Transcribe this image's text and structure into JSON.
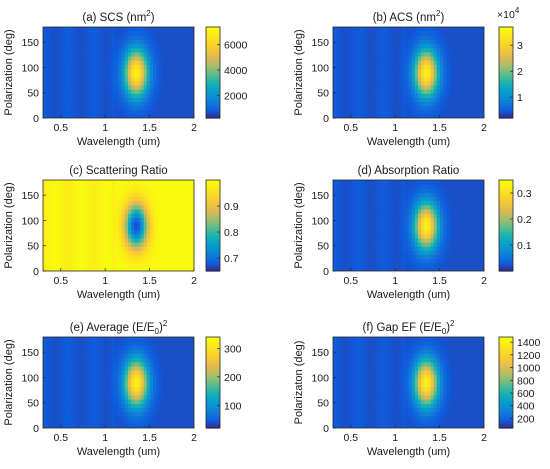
{
  "chart_data": [
    {
      "type": "heatmap",
      "title": "(a) SCS (nm",
      "title_sup": "2",
      "title_end": ")",
      "xlabel": "Wavelength (um)",
      "ylabel": "Polarization (deg)",
      "xlim": [
        0.3,
        2.0
      ],
      "ylim": [
        0,
        180
      ],
      "xticks": [
        "0.5",
        "1",
        "1.5",
        "2"
      ],
      "xtick_values": [
        0.5,
        1,
        1.5,
        2
      ],
      "yticks": [
        "0",
        "50",
        "100",
        "150"
      ],
      "ytick_values": [
        0,
        50,
        100,
        150
      ],
      "clim": [
        200,
        7400
      ],
      "colorbar_ticks": [
        "2000",
        "4000",
        "6000"
      ],
      "colorbar_values": [
        2000,
        4000,
        6000
      ],
      "colorbar_multiplier": "",
      "colormap": "parula",
      "peak": {
        "wavelength": 1.35,
        "polarization": 90
      },
      "inverted": false
    },
    {
      "type": "heatmap",
      "title": "(b) ACS (nm",
      "title_sup": "2",
      "title_end": ")",
      "xlabel": "Wavelength (um)",
      "ylabel": "Polarization (deg)",
      "xlim": [
        0.3,
        2.0
      ],
      "ylim": [
        0,
        180
      ],
      "xticks": [
        "0.5",
        "1",
        "1.5",
        "2"
      ],
      "xtick_values": [
        0.5,
        1,
        1.5,
        2
      ],
      "yticks": [
        "0",
        "50",
        "100",
        "150"
      ],
      "ytick_values": [
        0,
        50,
        100,
        150
      ],
      "clim": [
        0.2,
        3.7
      ],
      "colorbar_ticks": [
        "1",
        "2",
        "3"
      ],
      "colorbar_values": [
        1,
        2,
        3
      ],
      "colorbar_multiplier": "×10",
      "colorbar_multiplier_exp": "4",
      "colormap": "parula",
      "peak": {
        "wavelength": 1.35,
        "polarization": 90
      },
      "inverted": false
    },
    {
      "type": "heatmap",
      "title": "(c) Scattering Ratio",
      "title_sup": "",
      "title_end": "",
      "xlabel": "Wavelength (um)",
      "ylabel": "Polarization (deg)",
      "xlim": [
        0.3,
        2.0
      ],
      "ylim": [
        0,
        180
      ],
      "xticks": [
        "0.5",
        "1",
        "1.5",
        "2"
      ],
      "xtick_values": [
        0.5,
        1,
        1.5,
        2
      ],
      "yticks": [
        "0",
        "50",
        "100",
        "150"
      ],
      "ytick_values": [
        0,
        50,
        100,
        150
      ],
      "clim": [
        0.65,
        1.0
      ],
      "colorbar_ticks": [
        "0.7",
        "0.8",
        "0.9"
      ],
      "colorbar_values": [
        0.7,
        0.8,
        0.9
      ],
      "colorbar_multiplier": "",
      "colormap": "parula",
      "peak": {
        "wavelength": 1.35,
        "polarization": 90
      },
      "inverted": true
    },
    {
      "type": "heatmap",
      "title": "(d) Absorption Ratio",
      "title_sup": "",
      "title_end": "",
      "xlabel": "Wavelength (um)",
      "ylabel": "Polarization (deg)",
      "xlim": [
        0.3,
        2.0
      ],
      "ylim": [
        0,
        180
      ],
      "xticks": [
        "0.5",
        "1",
        "1.5",
        "2"
      ],
      "xtick_values": [
        0.5,
        1,
        1.5,
        2
      ],
      "yticks": [
        "0",
        "50",
        "100",
        "150"
      ],
      "ytick_values": [
        0,
        50,
        100,
        150
      ],
      "clim": [
        0.0,
        0.35
      ],
      "colorbar_ticks": [
        "0.1",
        "0.2",
        "0.3"
      ],
      "colorbar_values": [
        0.1,
        0.2,
        0.3
      ],
      "colorbar_multiplier": "",
      "colormap": "parula",
      "peak": {
        "wavelength": 1.35,
        "polarization": 90
      },
      "inverted": false
    },
    {
      "type": "heatmap",
      "title": "(e) Average (E/E",
      "title_sub": "0",
      "title_close": ")",
      "title_sup": "2",
      "title_end": "",
      "xlabel": "Wavelength (um)",
      "ylabel": "Polarization (deg)",
      "xlim": [
        0.3,
        2.0
      ],
      "ylim": [
        0,
        180
      ],
      "xticks": [
        "0.5",
        "1",
        "1.5",
        "2"
      ],
      "xtick_values": [
        0.5,
        1,
        1.5,
        2
      ],
      "yticks": [
        "0",
        "50",
        "100",
        "150"
      ],
      "ytick_values": [
        0,
        50,
        100,
        150
      ],
      "clim": [
        20,
        340
      ],
      "colorbar_ticks": [
        "100",
        "200",
        "300"
      ],
      "colorbar_values": [
        100,
        200,
        300
      ],
      "colorbar_multiplier": "",
      "colormap": "parula",
      "peak": {
        "wavelength": 1.35,
        "polarization": 90
      },
      "inverted": false
    },
    {
      "type": "heatmap",
      "title": "(f) Gap EF (E/E",
      "title_sub": "0",
      "title_close": ")",
      "title_sup": "2",
      "title_end": "",
      "xlabel": "Wavelength (um)",
      "ylabel": "Polarizaton (deg)",
      "xlim": [
        0.3,
        2.0
      ],
      "ylim": [
        0,
        180
      ],
      "xticks": [
        "0.5",
        "1",
        "1.5",
        "2"
      ],
      "xtick_values": [
        0.5,
        1,
        1.5,
        2
      ],
      "yticks": [
        "0",
        "50",
        "100",
        "150"
      ],
      "ytick_values": [
        0,
        50,
        100,
        150
      ],
      "clim": [
        50,
        1480
      ],
      "colorbar_ticks": [
        "200",
        "400",
        "600",
        "800",
        "1000",
        "1200",
        "1400"
      ],
      "colorbar_values": [
        200,
        400,
        600,
        800,
        1000,
        1200,
        1400
      ],
      "colorbar_multiplier": "",
      "colormap": "parula",
      "peak": {
        "wavelength": 1.35,
        "polarization": 90
      },
      "inverted": false
    }
  ]
}
